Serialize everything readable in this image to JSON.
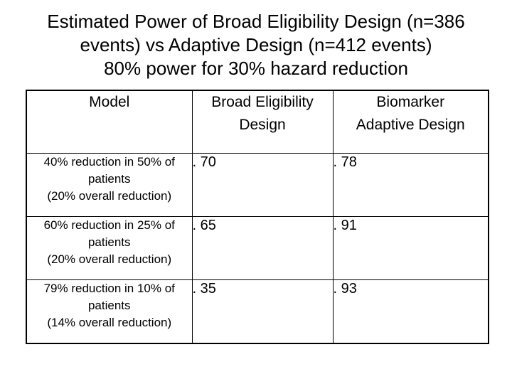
{
  "title": {
    "line1": "Estimated Power of Broad Eligibility Design (n=386",
    "line2": "events) vs Adaptive Design (n=412 events)",
    "line3": "80% power for 30% hazard reduction"
  },
  "table": {
    "headers": {
      "model": "Model",
      "broad_line1": "Broad Eligibility",
      "broad_line2": "Design",
      "adaptive_line1": "Biomarker",
      "adaptive_line2": "Adaptive Design"
    },
    "rows": [
      {
        "model_line1": "40% reduction in 50% of",
        "model_line2": "patients",
        "model_line3": "(20% overall reduction)",
        "broad": ". 70",
        "adaptive": ". 78"
      },
      {
        "model_line1": "60% reduction in 25% of",
        "model_line2": "patients",
        "model_line3": "(20% overall reduction)",
        "broad": ". 65",
        "adaptive": ". 91"
      },
      {
        "model_line1": "79% reduction in 10% of",
        "model_line2": "patients",
        "model_line3": "(14% overall reduction)",
        "broad": ". 35",
        "adaptive": ". 93"
      }
    ]
  }
}
